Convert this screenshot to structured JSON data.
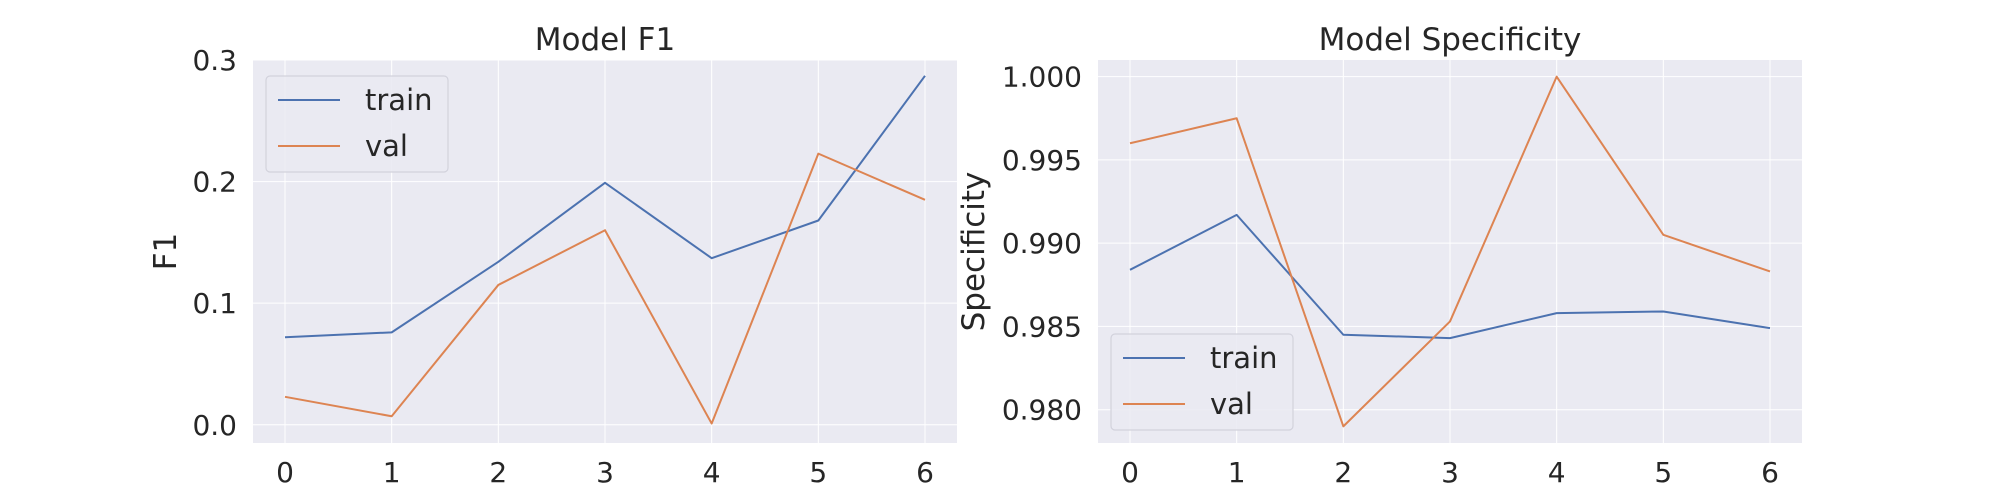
{
  "chart_data": [
    {
      "type": "line",
      "title": "Model F1",
      "xlabel": "",
      "ylabel": "F1",
      "x": [
        0,
        1,
        2,
        3,
        4,
        5,
        6
      ],
      "xticks": [
        "0",
        "1",
        "2",
        "3",
        "4",
        "5",
        "6"
      ],
      "xlim": [
        -0.3,
        6.3
      ],
      "ylim": [
        -0.015,
        0.3
      ],
      "yticks": [
        "0.0",
        "0.1",
        "0.2",
        "0.3"
      ],
      "ytick_values": [
        0.0,
        0.1,
        0.2,
        0.3
      ],
      "grid": true,
      "legend_position": "top-left",
      "series": [
        {
          "name": "train",
          "color": "#4c72b0",
          "values": [
            0.072,
            0.076,
            0.134,
            0.199,
            0.137,
            0.168,
            0.287
          ]
        },
        {
          "name": "val",
          "color": "#dd8452",
          "values": [
            0.023,
            0.007,
            0.115,
            0.16,
            0.001,
            0.223,
            0.185
          ]
        }
      ]
    },
    {
      "type": "line",
      "title": "Model Specificity",
      "xlabel": "",
      "ylabel": "Specificity",
      "x": [
        0,
        1,
        2,
        3,
        4,
        5,
        6
      ],
      "xticks": [
        "0",
        "1",
        "2",
        "3",
        "4",
        "5",
        "6"
      ],
      "xlim": [
        -0.3,
        6.3
      ],
      "ylim": [
        0.978,
        1.001
      ],
      "yticks": [
        "0.980",
        "0.985",
        "0.990",
        "0.995",
        "1.000"
      ],
      "ytick_values": [
        0.98,
        0.985,
        0.99,
        0.995,
        1.0
      ],
      "grid": true,
      "legend_position": "bottom-left",
      "series": [
        {
          "name": "train",
          "color": "#4c72b0",
          "values": [
            0.9884,
            0.9917,
            0.9845,
            0.9843,
            0.9858,
            0.9859,
            0.9849
          ]
        },
        {
          "name": "val",
          "color": "#dd8452",
          "values": [
            0.996,
            0.9975,
            0.979,
            0.9853,
            1.0,
            0.9905,
            0.9883
          ]
        }
      ]
    }
  ]
}
